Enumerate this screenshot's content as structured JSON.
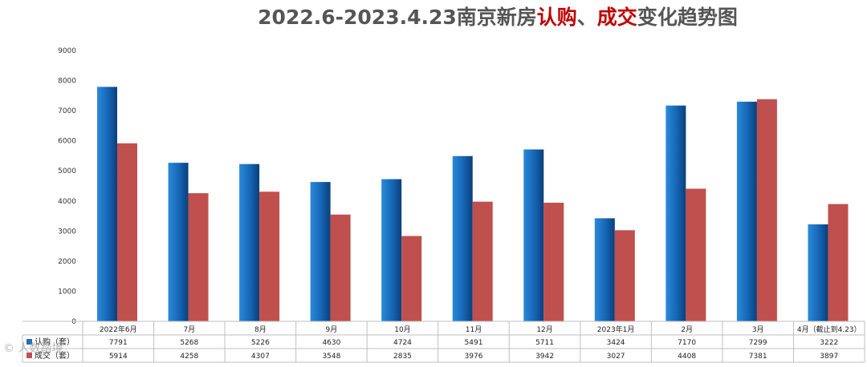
{
  "title_parts": {
    "prefix": "2022.6-2023.4.23南京新房",
    "hl1": "认购",
    "sep": "、",
    "hl2": "成交",
    "suffix": "变化趋势图"
  },
  "watermark": "© 人数踏境",
  "colors": {
    "series1": "#1f6fbf",
    "series2": "#c0504d",
    "highlight": "#c00000"
  },
  "chart_data": {
    "type": "bar",
    "title": "2022.6-2023.4.23南京新房认购、成交变化趋势图",
    "categories": [
      "2022年6月",
      "7月",
      "8月",
      "9月",
      "10月",
      "11月",
      "12月",
      "2023年1月",
      "2月",
      "3月",
      "4月（截止到4.23）"
    ],
    "series": [
      {
        "name": "认购（套）",
        "values": [
          7791,
          5268,
          5226,
          4630,
          4724,
          5491,
          5711,
          3424,
          7170,
          7299,
          3222
        ]
      },
      {
        "name": "成交（套）",
        "values": [
          5914,
          4258,
          4307,
          3548,
          2835,
          3976,
          3942,
          3027,
          4408,
          7381,
          3897
        ]
      }
    ],
    "ylim": [
      0,
      9000
    ],
    "yticks": [
      "0",
      "1000",
      "2000",
      "3000",
      "4000",
      "5000",
      "6000",
      "7000",
      "8000",
      "9000"
    ],
    "data_table": true,
    "grid": false
  }
}
